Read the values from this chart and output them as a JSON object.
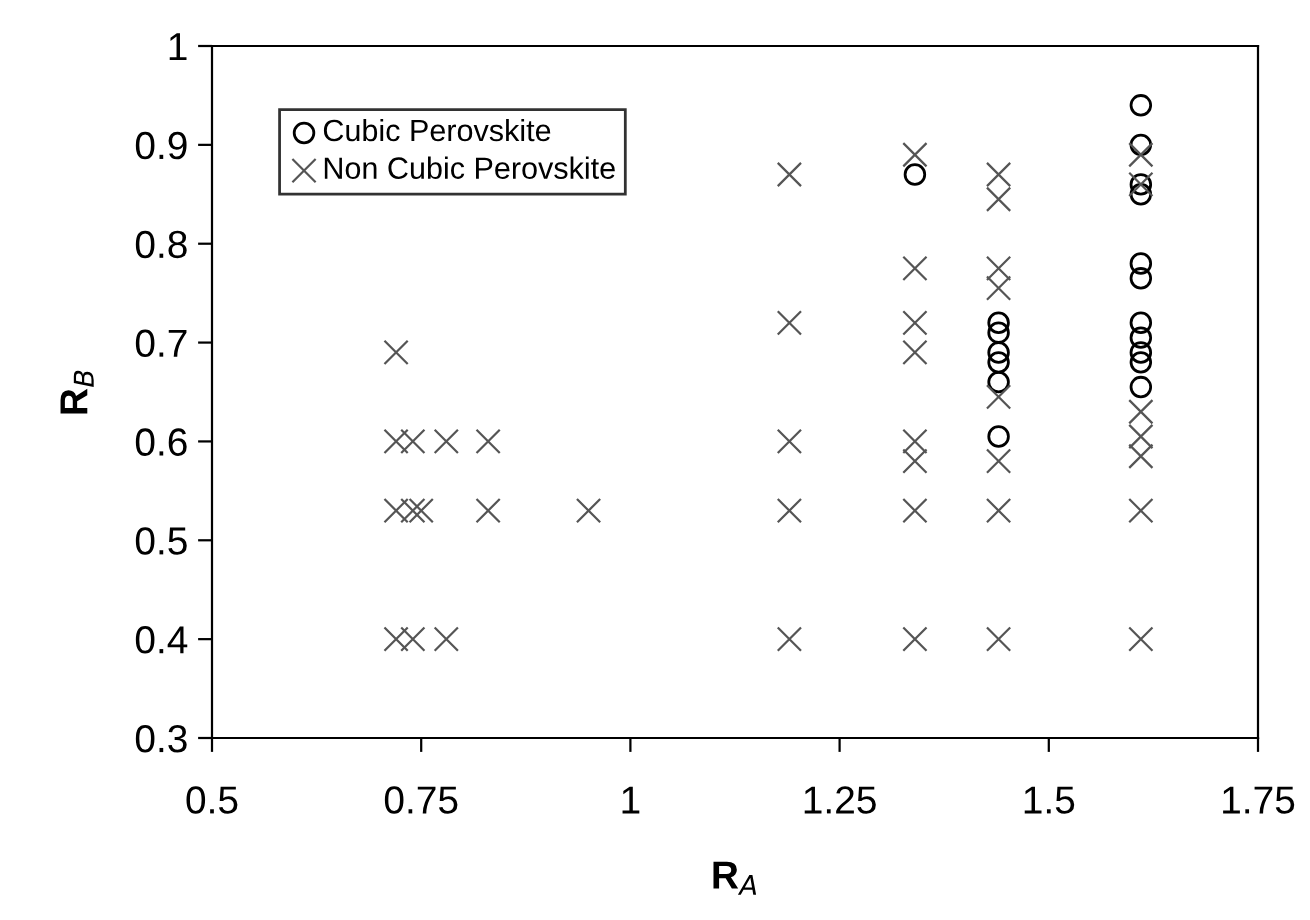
{
  "chart_data": {
    "type": "scatter",
    "xlabel": "R$_{A}$",
    "ylabel": "R$_{B}$",
    "xlim": [
      0.5,
      1.75
    ],
    "ylim": [
      0.3,
      1
    ],
    "xticks": [
      0.5,
      0.75,
      1,
      1.25,
      1.5,
      1.75
    ],
    "yticks": [
      0.3,
      0.4,
      0.5,
      0.6,
      0.7,
      0.8,
      0.9,
      1
    ],
    "grid": false,
    "legend": "top left",
    "series": [
      {
        "name": "Cubic Perovskite",
        "color": "#000000",
        "marker": "circle",
        "x": [
          1.34,
          1.44,
          1.44,
          1.44,
          1.44,
          1.44,
          1.44,
          1.61,
          1.61,
          1.61,
          1.61,
          1.61,
          1.61,
          1.61,
          1.61,
          1.61,
          1.61,
          1.61
        ],
        "values": [
          0.87,
          0.72,
          0.71,
          0.69,
          0.68,
          0.66,
          0.605,
          0.94,
          0.9,
          0.86,
          0.85,
          0.78,
          0.765,
          0.72,
          0.705,
          0.69,
          0.68,
          0.655
        ]
      },
      {
        "name": "Non Cubic Perovskite",
        "color": "#555555",
        "marker": "cross",
        "x": [
          0.72,
          0.72,
          0.72,
          0.72,
          0.74,
          0.74,
          0.74,
          0.75,
          0.78,
          0.78,
          0.83,
          0.83,
          0.95,
          1.19,
          1.19,
          1.19,
          1.19,
          1.19,
          1.34,
          1.34,
          1.34,
          1.34,
          1.34,
          1.34,
          1.34,
          1.34,
          1.44,
          1.44,
          1.44,
          1.44,
          1.44,
          1.44,
          1.44,
          1.44,
          1.61,
          1.61,
          1.61,
          1.61,
          1.61,
          1.61,
          1.61
        ],
        "values": [
          0.69,
          0.6,
          0.53,
          0.4,
          0.6,
          0.53,
          0.4,
          0.53,
          0.6,
          0.4,
          0.6,
          0.53,
          0.53,
          0.87,
          0.72,
          0.6,
          0.53,
          0.4,
          0.89,
          0.775,
          0.72,
          0.69,
          0.6,
          0.58,
          0.53,
          0.4,
          0.87,
          0.845,
          0.775,
          0.755,
          0.645,
          0.58,
          0.53,
          0.4,
          0.89,
          0.86,
          0.63,
          0.605,
          0.585,
          0.53,
          0.4
        ]
      }
    ]
  }
}
